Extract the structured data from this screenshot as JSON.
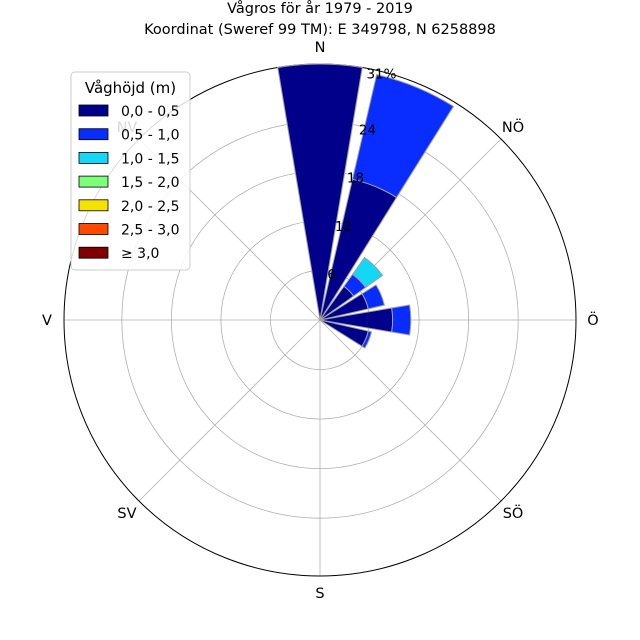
{
  "chart_data": {
    "type": "windrose",
    "title": "Vågros för år 1979 - 2019",
    "subtitle": "Koordinat (Sweref 99 TM): E 349798, N 6258898",
    "directions": [
      "N",
      "NÖ",
      "Ö",
      "SÖ",
      "S",
      "SV",
      "V",
      "NV"
    ],
    "radial_ticks": [
      "6",
      "12",
      "18",
      "24",
      "31%"
    ],
    "radial_max": 31,
    "legend_title": "Våghöjd (m)",
    "legend_position": "upper-left",
    "bins": [
      {
        "label": "0,0 - 0,5",
        "color": "#00008b"
      },
      {
        "label": "0,5 - 1,0",
        "color": "#0a2dff"
      },
      {
        "label": "1,0 - 1,5",
        "color": "#12d8f6"
      },
      {
        "label": "1,5 - 2,0",
        "color": "#7cff79"
      },
      {
        "label": "2,0 - 2,5",
        "color": "#f6e200"
      },
      {
        "label": "2,5 - 3,0",
        "color": "#ff4a00"
      },
      {
        "label": "≥ 3,0",
        "color": "#800000"
      }
    ],
    "sectors": [
      {
        "direction_deg": 0,
        "values": [
          31.0,
          0,
          0,
          0,
          0,
          0,
          0
        ]
      },
      {
        "direction_deg": 22.5,
        "values": [
          17.5,
          13.0,
          0,
          0,
          0,
          0,
          0
        ]
      },
      {
        "direction_deg": 45,
        "values": [
          5.0,
          1.8,
          2.5,
          0,
          0,
          0,
          0
        ]
      },
      {
        "direction_deg": 67.5,
        "values": [
          6.0,
          2.0,
          0,
          0,
          0,
          0,
          0
        ]
      },
      {
        "direction_deg": 90,
        "values": [
          8.8,
          2.2,
          0,
          0,
          0,
          0,
          0
        ]
      },
      {
        "direction_deg": 112.5,
        "values": [
          6.0,
          0.4,
          0,
          0,
          0,
          0,
          0
        ]
      }
    ],
    "grid": true
  }
}
